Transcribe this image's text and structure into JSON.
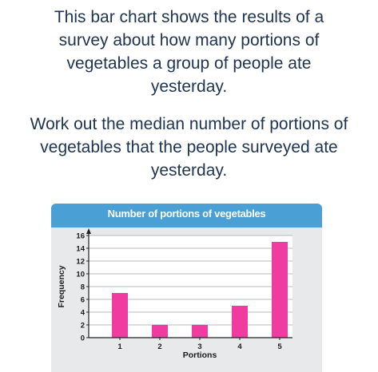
{
  "question": {
    "intro": "This bar chart shows the results of a survey about how many portions of vegetables a group of people ate yesterday.",
    "task": "Work out the median number of portions of vegetables that the people surveyed ate yesterday."
  },
  "chart_data": {
    "type": "bar",
    "title": "Number of portions of vegetables",
    "xlabel": "Portions",
    "ylabel": "Frequency",
    "categories": [
      "1",
      "2",
      "3",
      "4",
      "5"
    ],
    "values": [
      7,
      2,
      2,
      5,
      15
    ],
    "ylim": [
      0,
      16
    ],
    "yticks": [
      "0",
      "2",
      "4",
      "6",
      "8",
      "10",
      "12",
      "14",
      "16"
    ],
    "grid": true,
    "bar_color": "#f03ca0",
    "header_color": "#4a9fd4",
    "plot_background": "#e8e9ea"
  }
}
